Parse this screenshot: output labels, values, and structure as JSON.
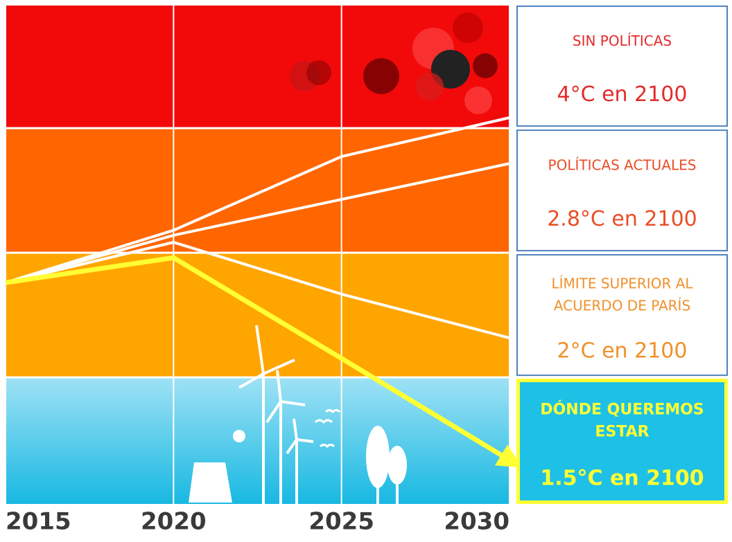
{
  "chart_data": {
    "type": "line",
    "x": [
      2015,
      2020,
      2025,
      2030
    ],
    "xlim": [
      2015,
      2030
    ],
    "xticks": [
      2015,
      2020,
      2025,
      2030
    ],
    "ylim": [
      0,
      100
    ],
    "bands": [
      {
        "from": 75.4,
        "to": 100,
        "color": "#f20a0a"
      },
      {
        "from": 50.4,
        "to": 75.4,
        "color": "#ff6600"
      },
      {
        "from": 25.4,
        "to": 50.4,
        "color": "#ffa500"
      },
      {
        "from": 0,
        "to": 25.4,
        "color": "#3cc8ea"
      }
    ],
    "series": [
      {
        "color": "#ffffff",
        "values": [
          44.4,
          54.9,
          69.7,
          77.5
        ]
      },
      {
        "color": "#ffffff",
        "values": [
          44.4,
          53.9,
          61.1,
          68.3
        ]
      },
      {
        "color": "#ffffff",
        "values": [
          44.4,
          52.5,
          42.1,
          33.3
        ]
      },
      {
        "color": "#ffff33",
        "values": [
          44.4,
          49.4,
          29.2,
          8.8
        ],
        "arrow": true
      }
    ],
    "scenarios": [
      {
        "label": [
          "SIN POLÍTICAS"
        ],
        "target": "4°C en 2100",
        "color": "#e32b2b",
        "fill": "#ffffff",
        "border": "#4f81bd",
        "bold": false
      },
      {
        "label": [
          "POLÍTICAS ACTUALES"
        ],
        "target": "2.8°C en 2100",
        "color": "#ea4d28",
        "fill": "#ffffff",
        "border": "#4f81bd",
        "bold": false
      },
      {
        "label": [
          "LÍMITE SUPERIOR AL",
          "ACUERDO DE PARÍS"
        ],
        "target": "2°C en 2100",
        "color": "#f0902a",
        "fill": "#ffffff",
        "border": "#4f81bd",
        "bold": false
      },
      {
        "label": [
          "DÓNDE QUEREMOS",
          "ESTAR"
        ],
        "target": "1.5°C en 2100",
        "color": "#ffff33",
        "fill": "#1ec0e6",
        "border": "#ffff33",
        "bold": true
      }
    ]
  }
}
